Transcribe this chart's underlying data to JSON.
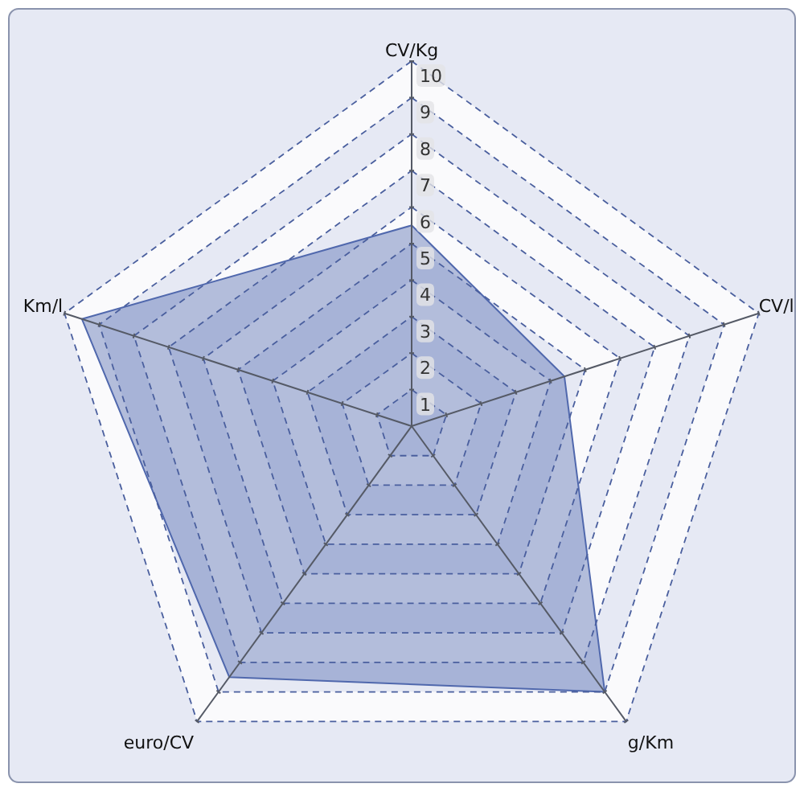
{
  "chart_data": {
    "type": "radar",
    "categories": [
      "CV/Kg",
      "CV/l",
      "g/Km",
      "euro/CV",
      "Km/l"
    ],
    "series": [
      {
        "color": "#5068ad",
        "values": [
          5.5,
          4.4,
          9,
          8.5,
          9.5
        ]
      }
    ],
    "ylim": [
      0,
      10
    ],
    "yticks": [
      1,
      2,
      3,
      4,
      5,
      6,
      7,
      8,
      9,
      10
    ],
    "grid": true
  }
}
